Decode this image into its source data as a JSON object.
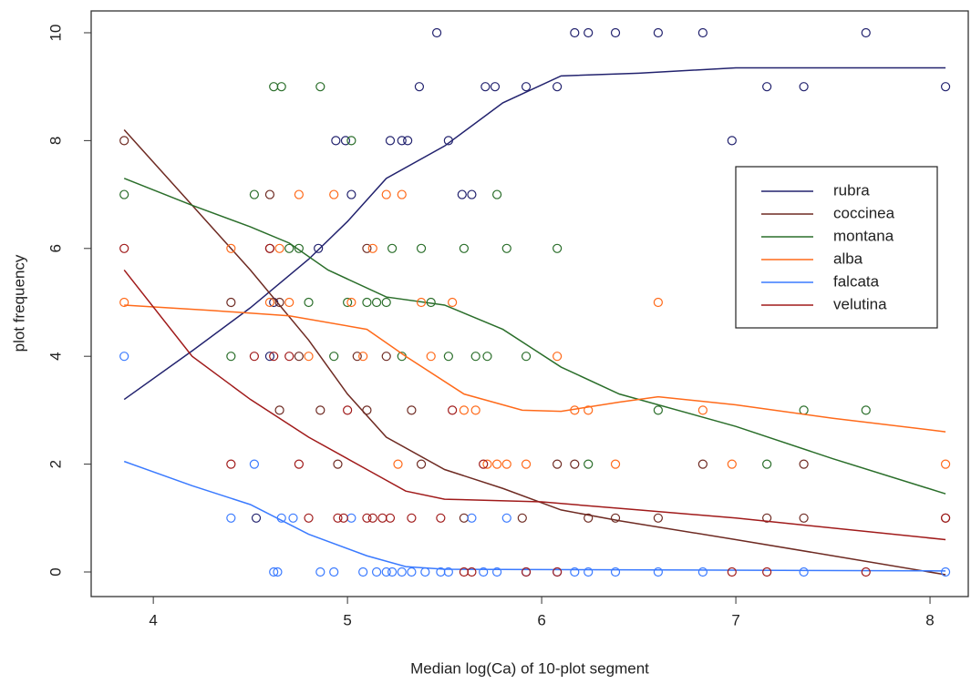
{
  "chart_data": {
    "type": "scatter",
    "x_label": "Median log(Ca) of 10-plot segment",
    "y_label": "plot frequency",
    "xlim": [
      3.68,
      8.197
    ],
    "ylim": [
      -0.456,
      10.405
    ],
    "xticks": [
      4,
      5,
      6,
      7,
      8
    ],
    "yticks": [
      0,
      2,
      4,
      6,
      8,
      10
    ],
    "legend": "right",
    "series": [
      {
        "name": "rubra",
        "color": "#22226e",
        "x": [
          5.46,
          6.17,
          6.24,
          6.38,
          6.6,
          6.83,
          7.67,
          5.71,
          5.76,
          5.92,
          6.08,
          7.16,
          7.35,
          8.08,
          5.37,
          4.94,
          4.99,
          5.22,
          5.28,
          5.31,
          5.52,
          6.98,
          5.02,
          5.59,
          5.64,
          4.85,
          4.62,
          4.6,
          4.53
        ],
        "values": [
          10,
          10,
          10,
          10,
          10,
          10,
          10,
          9,
          9,
          9,
          9,
          9,
          9,
          9,
          9,
          8,
          8,
          8,
          8,
          8,
          8,
          8,
          7,
          7,
          7,
          6,
          5,
          4,
          1
        ],
        "line_x": [
          3.85,
          4.2,
          4.5,
          4.8,
          5.0,
          5.2,
          5.5,
          5.8,
          6.1,
          6.5,
          7,
          8.08
        ],
        "line_values": [
          3.2,
          4.1,
          4.9,
          5.8,
          6.5,
          7.3,
          7.9,
          8.7,
          9.2,
          9.25,
          9.35,
          9.35
        ]
      },
      {
        "name": "coccinea",
        "color": "#6e2a22",
        "x": [
          3.85,
          4.4,
          4.6,
          4.65,
          4.6,
          4.75,
          4.65,
          4.86,
          4.95,
          5.1,
          5.05,
          5.2,
          5.1,
          5.33,
          5.38,
          5.6,
          5.9,
          6.08,
          6.17,
          6.24,
          6.38,
          6.6,
          6.83,
          7.16,
          7.35,
          7.35,
          8.08
        ],
        "values": [
          8,
          5,
          7,
          5,
          6,
          4,
          3,
          3,
          2,
          6,
          4,
          4,
          3,
          3,
          2,
          1,
          1,
          2,
          2,
          1,
          1,
          1,
          2,
          1,
          2,
          1,
          1
        ],
        "line_x": [
          3.85,
          4.2,
          4.5,
          4.8,
          5.0,
          5.2,
          5.5,
          5.8,
          6.1,
          6.4,
          7,
          7.5,
          8.08
        ],
        "line_values": [
          8.2,
          6.8,
          5.6,
          4.3,
          3.3,
          2.5,
          1.9,
          1.55,
          1.15,
          0.95,
          0.6,
          0.3,
          -0.05
        ]
      },
      {
        "name": "montana",
        "color": "#2a6e2a",
        "x": [
          3.85,
          4.4,
          4.52,
          4.62,
          4.66,
          4.7,
          4.75,
          4.8,
          4.86,
          4.93,
          5.0,
          5.02,
          5.1,
          5.15,
          5.2,
          5.23,
          5.28,
          5.38,
          5.43,
          5.52,
          5.6,
          5.66,
          5.72,
          5.77,
          5.82,
          5.92,
          6.08,
          6.24,
          6.6,
          7.16,
          7.35,
          7.67
        ],
        "values": [
          7,
          4,
          7,
          9,
          9,
          6,
          6,
          5,
          9,
          4,
          5,
          8,
          5,
          5,
          5,
          6,
          4,
          6,
          5,
          4,
          6,
          4,
          4,
          7,
          6,
          4,
          6,
          2,
          3,
          2,
          3,
          3
        ],
        "line_x": [
          3.85,
          4.2,
          4.5,
          4.7,
          4.9,
          5.2,
          5.5,
          5.8,
          6.1,
          6.4,
          7,
          7.5,
          8.08
        ],
        "line_values": [
          7.3,
          6.8,
          6.4,
          6.1,
          5.6,
          5.1,
          4.95,
          4.5,
          3.8,
          3.3,
          2.7,
          2.1,
          1.45
        ]
      },
      {
        "name": "alba",
        "color": "#ff6a1a",
        "x": [
          3.85,
          4.4,
          4.6,
          4.65,
          4.7,
          4.75,
          4.8,
          4.93,
          5.02,
          5.08,
          5.13,
          5.2,
          5.26,
          5.28,
          5.38,
          5.43,
          5.54,
          5.6,
          5.66,
          5.72,
          5.77,
          5.82,
          5.92,
          6.08,
          6.17,
          6.24,
          6.38,
          6.6,
          6.83,
          6.98,
          8.08
        ],
        "values": [
          5,
          6,
          5,
          6,
          5,
          7,
          4,
          7,
          5,
          4,
          6,
          7,
          2,
          7,
          5,
          4,
          5,
          3,
          3,
          2,
          2,
          2,
          2,
          4,
          3,
          3,
          2,
          5,
          3,
          2,
          2
        ],
        "line_x": [
          3.85,
          4.3,
          4.7,
          5.1,
          5.3,
          5.6,
          5.9,
          6.1,
          6.4,
          6.6,
          7,
          7.5,
          8.08
        ],
        "line_values": [
          4.95,
          4.85,
          4.75,
          4.5,
          4.0,
          3.3,
          3.0,
          2.98,
          3.15,
          3.25,
          3.1,
          2.85,
          2.6
        ]
      },
      {
        "name": "falcata",
        "color": "#3a7aff",
        "x": [
          3.85,
          4.4,
          4.52,
          4.62,
          4.64,
          4.66,
          4.72,
          4.86,
          4.93,
          5.02,
          5.08,
          5.15,
          5.2,
          5.23,
          5.28,
          5.33,
          5.4,
          5.48,
          5.52,
          5.64,
          5.7,
          5.77,
          5.82,
          5.92,
          6.08,
          6.17,
          6.24,
          6.38,
          6.6,
          6.83,
          7.35,
          8.08
        ],
        "values": [
          4,
          1,
          2,
          0,
          0,
          1,
          1,
          0,
          0,
          1,
          0,
          0,
          0,
          0,
          0,
          0,
          0,
          0,
          0,
          1,
          0,
          0,
          1,
          0,
          0,
          0,
          0,
          0,
          0,
          0,
          0,
          0
        ],
        "line_x": [
          3.85,
          4.2,
          4.5,
          4.8,
          5.1,
          5.3,
          5.5,
          8.08
        ],
        "line_values": [
          2.05,
          1.6,
          1.25,
          0.7,
          0.3,
          0.1,
          0.05,
          0.02
        ]
      },
      {
        "name": "velutina",
        "color": "#a01a1a",
        "x": [
          3.85,
          4.4,
          4.52,
          4.6,
          4.62,
          4.7,
          4.75,
          4.8,
          4.95,
          4.98,
          5.0,
          5.1,
          5.13,
          5.18,
          5.22,
          5.33,
          5.48,
          5.54,
          5.6,
          5.64,
          5.7,
          5.92,
          6.08,
          6.98,
          7.16,
          7.67,
          8.08
        ],
        "values": [
          6,
          2,
          4,
          6,
          4,
          4,
          2,
          1,
          1,
          1,
          3,
          1,
          1,
          1,
          1,
          1,
          1,
          3,
          0,
          0,
          2,
          0,
          0,
          0,
          0,
          0,
          1
        ],
        "line_x": [
          3.85,
          4.2,
          4.5,
          4.8,
          5.1,
          5.3,
          5.5,
          6,
          6.5,
          7,
          8.08
        ],
        "line_values": [
          5.6,
          4.0,
          3.2,
          2.5,
          1.9,
          1.5,
          1.35,
          1.3,
          1.15,
          1.0,
          0.6
        ]
      }
    ]
  }
}
